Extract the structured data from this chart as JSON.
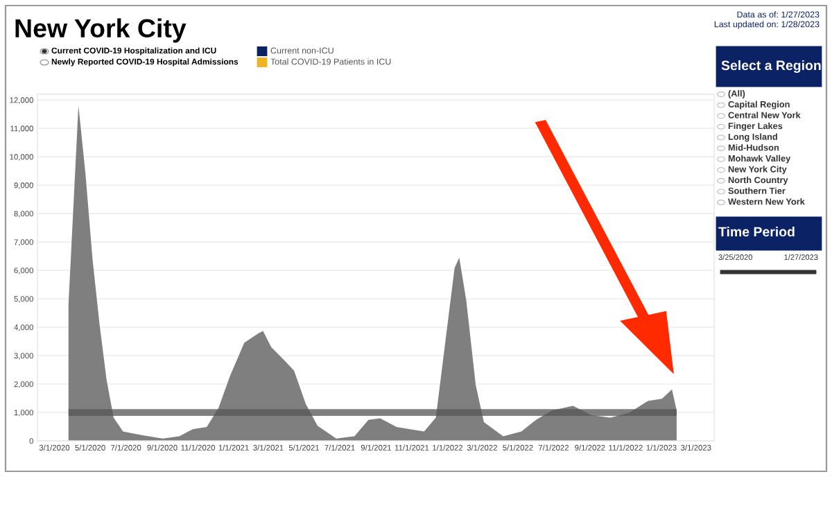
{
  "chart_data": {
    "type": "area",
    "title": "New York City",
    "x": [
      "2020-03-25",
      "2020-04-11",
      "2020-04-23",
      "2020-05-05",
      "2020-05-17",
      "2020-05-29",
      "2020-06-10",
      "2020-06-26",
      "2020-07-28",
      "2020-09-02",
      "2020-09-30",
      "2020-10-23",
      "2020-11-16",
      "2020-12-06",
      "2020-12-26",
      "2021-01-19",
      "2021-02-12",
      "2021-02-20",
      "2021-03-06",
      "2021-03-30",
      "2021-04-14",
      "2021-05-04",
      "2021-05-24",
      "2021-06-25",
      "2021-07-26",
      "2021-08-19",
      "2021-09-08",
      "2021-10-06",
      "2021-10-29",
      "2021-11-22",
      "2021-12-12",
      "2021-12-28",
      "2022-01-13",
      "2022-01-21",
      "2022-02-02",
      "2022-02-18",
      "2022-03-04",
      "2022-04-06",
      "2022-05-07",
      "2022-06-01",
      "2022-06-28",
      "2022-08-03",
      "2022-09-04",
      "2022-10-06",
      "2022-11-07",
      "2022-12-09",
      "2023-01-02",
      "2023-01-19",
      "2023-01-27"
    ],
    "series": [
      {
        "color": "#7f7f7f",
        "values": [
          4800,
          11800,
          9400,
          6400,
          4100,
          2150,
          820,
          330,
          200,
          80,
          160,
          410,
          490,
          1150,
          2300,
          3450,
          3780,
          3870,
          3300,
          2800,
          2470,
          1300,
          530,
          80,
          160,
          740,
          790,
          490,
          410,
          330,
          820,
          3450,
          6090,
          6450,
          4930,
          1970,
          660,
          160,
          330,
          740,
          1070,
          1230,
          900,
          820,
          990,
          1400,
          1480,
          1810,
          1070
        ]
      }
    ],
    "xlim": [
      "2020-02-01",
      "2023-04-01"
    ],
    "xticks": [
      {
        "value": "2020-03-01",
        "label": "3/1/2020"
      },
      {
        "value": "2020-05-01",
        "label": "5/1/2020"
      },
      {
        "value": "2020-07-01",
        "label": "7/1/2020"
      },
      {
        "value": "2020-09-01",
        "label": "9/1/2020"
      },
      {
        "value": "2020-11-01",
        "label": "11/1/2020"
      },
      {
        "value": "2021-01-01",
        "label": "1/1/2021"
      },
      {
        "value": "2021-03-01",
        "label": "3/1/2021"
      },
      {
        "value": "2021-05-01",
        "label": "5/1/2021"
      },
      {
        "value": "2021-07-01",
        "label": "7/1/2021"
      },
      {
        "value": "2021-09-01",
        "label": "9/1/2021"
      },
      {
        "value": "2021-11-01",
        "label": "11/1/2021"
      },
      {
        "value": "2022-01-01",
        "label": "1/1/2022"
      },
      {
        "value": "2022-03-01",
        "label": "3/1/2022"
      },
      {
        "value": "2022-05-01",
        "label": "5/1/2022"
      },
      {
        "value": "2022-07-01",
        "label": "7/1/2022"
      },
      {
        "value": "2022-09-01",
        "label": "9/1/2022"
      },
      {
        "value": "2022-11-01",
        "label": "11/1/2022"
      },
      {
        "value": "2023-01-01",
        "label": "1/1/2023"
      },
      {
        "value": "2023-03-01",
        "label": "3/1/2023"
      }
    ],
    "ylim": [
      0,
      12200
    ],
    "yticks": [
      0,
      {
        "value": 1000,
        "label": "1,000"
      },
      {
        "value": 2000,
        "label": "2,000"
      },
      {
        "value": 3000,
        "label": "3,000"
      },
      {
        "value": 4000,
        "label": "4,000"
      },
      {
        "value": 5000,
        "label": "5,000"
      },
      {
        "value": 6000,
        "label": "6,000"
      },
      {
        "value": 7000,
        "label": "7,000"
      },
      {
        "value": 8000,
        "label": "8,000"
      },
      {
        "value": 9000,
        "label": "9,000"
      },
      {
        "value": 10000,
        "label": "10,000"
      },
      {
        "value": 11000,
        "label": "11,000"
      },
      {
        "value": 12000,
        "label": "12,000"
      }
    ],
    "ref_lines": [
      {
        "axis": "y",
        "value": 1000,
        "color": "#555555"
      }
    ],
    "grid": "y",
    "legend": false,
    "annotations": [
      "Data as of: 1/27/2023",
      "Last updated on: 1/28/2023",
      "Current COVID-19 Hospitalization and ICU",
      "Newly Reported COVID-19 Hospital Admissions",
      "Current non-ICU",
      "Total COVID-19 Patients in ICU",
      "Select a Region",
      "(All)",
      "Capital Region",
      "Central New York",
      "Finger Lakes",
      "Long Island",
      "Mid-Hudson",
      "Mohawk Valley",
      "New York City",
      "North Country",
      "Southern Tier",
      "Western New York",
      "Time Period",
      "3/25/2020",
      "1/27/2023"
    ]
  }
}
